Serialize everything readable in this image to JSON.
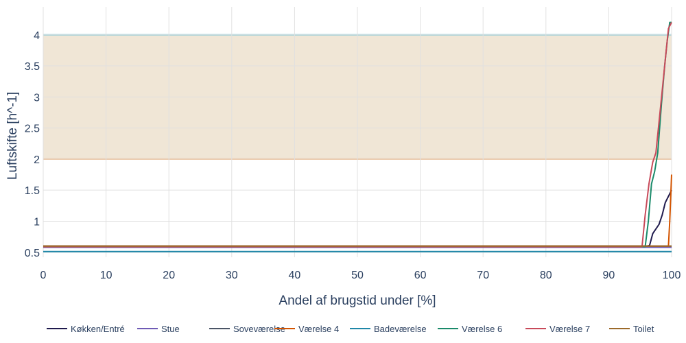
{
  "chart_data": {
    "type": "line",
    "title": "",
    "xlabel": "Andel af brugstid under [%]",
    "ylabel": "Luftskifte [h^-1]",
    "xlim": [
      0,
      100
    ],
    "ylim": [
      0.42,
      4.45
    ],
    "xticks": [
      0,
      10,
      20,
      30,
      40,
      50,
      60,
      70,
      80,
      90,
      100
    ],
    "yticks": [
      0.5,
      1,
      1.5,
      2,
      2.5,
      3,
      3.5,
      4
    ],
    "grid": true,
    "legend_position": "bottom",
    "band": {
      "y_low": 2,
      "y_high": 4,
      "fill": "#f0e6d6",
      "lower_line_color": "#f0b27a",
      "upper_line_color": "#76c7d6"
    },
    "series": [
      {
        "name": "Køkken/Entré",
        "color": "#1f1a4d",
        "x": [
          0,
          96,
          96.5,
          97,
          98,
          98.5,
          99,
          99.5,
          100
        ],
        "y": [
          0.6,
          0.6,
          0.61,
          0.8,
          0.95,
          1.1,
          1.3,
          1.4,
          1.5
        ]
      },
      {
        "name": "Stue",
        "color": "#6f5bb5",
        "x": [
          0,
          100
        ],
        "y": [
          0.58,
          0.58
        ]
      },
      {
        "name": "Soveværelse",
        "color": "#4b5566",
        "x": [
          0,
          100
        ],
        "y": [
          0.6,
          0.6
        ]
      },
      {
        "name": "Værelse 4",
        "color": "#d35400",
        "x": [
          0,
          99.5,
          99.7,
          100
        ],
        "y": [
          0.6,
          0.6,
          1.0,
          1.75
        ]
      },
      {
        "name": "Badeværelse",
        "color": "#1f87a8",
        "x": [
          0,
          100
        ],
        "y": [
          0.51,
          0.51
        ]
      },
      {
        "name": "Værelse 6",
        "color": "#1a8a6a",
        "x": [
          0,
          95.8,
          96.3,
          96.8,
          97.3,
          97.8,
          98.4,
          98.9,
          99.3,
          99.7,
          100
        ],
        "y": [
          0.59,
          0.59,
          1.0,
          1.6,
          1.8,
          2.1,
          2.9,
          3.5,
          3.9,
          4.2,
          4.2
        ]
      },
      {
        "name": "Værelse 7",
        "color": "#c84a5a",
        "x": [
          0,
          95.3,
          95.8,
          96.4,
          97,
          97.5,
          98,
          98.5,
          99,
          99.5,
          100
        ],
        "y": [
          0.59,
          0.59,
          1.1,
          1.6,
          1.95,
          2.1,
          2.6,
          3.1,
          3.6,
          4.1,
          4.2
        ]
      },
      {
        "name": "Toilet",
        "color": "#9c6a2a",
        "x": [
          0,
          100
        ],
        "y": [
          0.6,
          0.6
        ]
      }
    ]
  }
}
